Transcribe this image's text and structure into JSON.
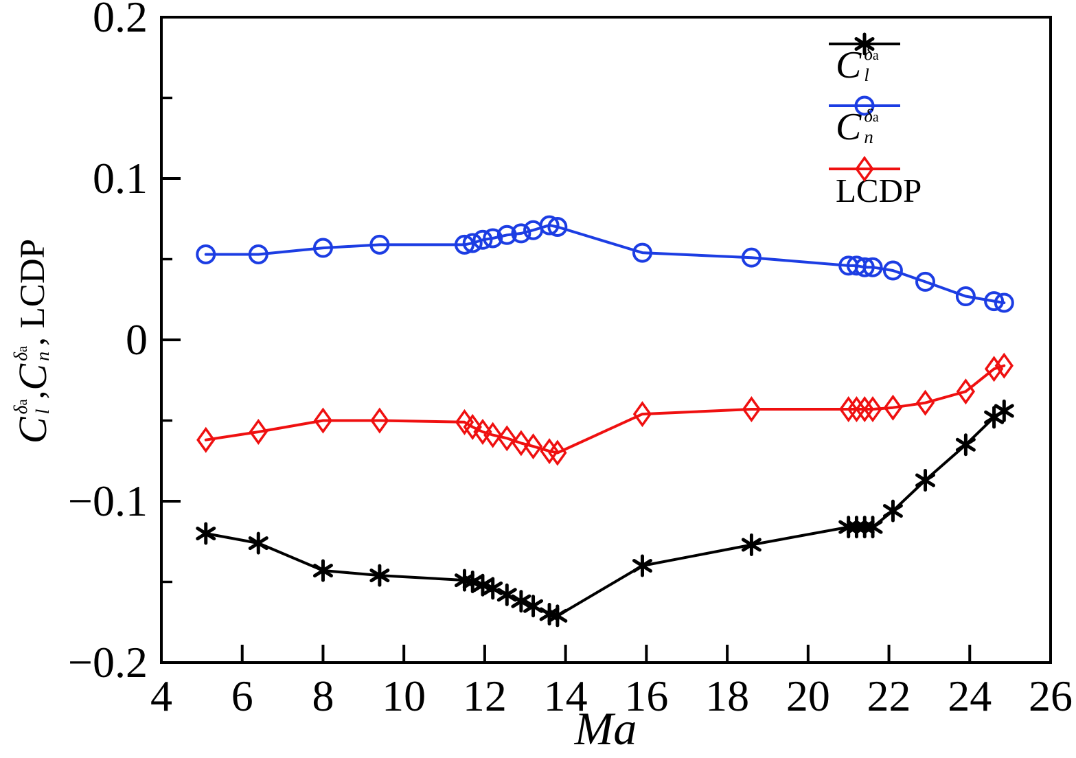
{
  "chart_data": {
    "type": "line",
    "title": "",
    "xlabel": "Ma",
    "ylabel_plain": "C_l^{δa}, C_n^{δa}, LCDP",
    "xlim": [
      4,
      26
    ],
    "ylim": [
      -0.2,
      0.2
    ],
    "grid": false,
    "legend_position": "top-right-inside",
    "x_ticks": [
      4,
      6,
      8,
      10,
      12,
      14,
      16,
      18,
      20,
      22,
      24,
      26
    ],
    "y_ticks_major": [
      {
        "v": 0.2,
        "label": "0.2"
      },
      {
        "v": 0.1,
        "label": "0.1"
      },
      {
        "v": 0,
        "label": "0"
      },
      {
        "v": -0.1,
        "label": "−0.1"
      },
      {
        "v": -0.2,
        "label": "−0.2"
      }
    ],
    "y_ticks_minor": [
      0.15,
      0.05,
      -0.05,
      -0.15
    ],
    "x": [
      5.1,
      6.4,
      8.0,
      9.4,
      11.5,
      11.7,
      11.95,
      12.2,
      12.55,
      12.9,
      13.2,
      13.6,
      13.8,
      15.9,
      18.6,
      21.0,
      21.2,
      21.4,
      21.6,
      22.1,
      22.9,
      23.9,
      24.6,
      24.85
    ],
    "series": [
      {
        "name": "C_l_delta_a",
        "marker": "asterisk",
        "color": "#000000",
        "label": {
          "kind": "math",
          "base": "C",
          "sup": "δ",
          "sup_sub": "a",
          "sub": "l"
        },
        "values": [
          -0.12,
          -0.126,
          -0.143,
          -0.146,
          -0.149,
          -0.15,
          -0.152,
          -0.154,
          -0.158,
          -0.162,
          -0.165,
          -0.17,
          -0.171,
          -0.14,
          -0.127,
          -0.116,
          -0.116,
          -0.116,
          -0.116,
          -0.106,
          -0.087,
          -0.065,
          -0.048,
          -0.044
        ]
      },
      {
        "name": "C_n_delta_a",
        "marker": "circle",
        "color": "#1c3de3",
        "label": {
          "kind": "math",
          "base": "C",
          "sup": "δ",
          "sup_sub": "a",
          "sub": "n"
        },
        "values": [
          0.053,
          0.053,
          0.057,
          0.059,
          0.059,
          0.06,
          0.062,
          0.063,
          0.065,
          0.066,
          0.068,
          0.071,
          0.07,
          0.054,
          0.051,
          0.046,
          0.046,
          0.045,
          0.045,
          0.043,
          0.036,
          0.027,
          0.024,
          0.023
        ]
      },
      {
        "name": "LCDP",
        "marker": "diamond",
        "color": "#ef1010",
        "label": {
          "kind": "text",
          "text": "LCDP"
        },
        "values": [
          -0.062,
          -0.057,
          -0.05,
          -0.05,
          -0.051,
          -0.054,
          -0.057,
          -0.059,
          -0.061,
          -0.064,
          -0.066,
          -0.069,
          -0.07,
          -0.046,
          -0.043,
          -0.043,
          -0.043,
          -0.043,
          -0.043,
          -0.042,
          -0.039,
          -0.032,
          -0.018,
          -0.016
        ]
      }
    ],
    "ylabel_rich": [
      {
        "kind": "math",
        "base": "C",
        "sup": "δ",
        "sup_sub": "a",
        "sub": "l"
      },
      {
        "kind": "text",
        "text": ", "
      },
      {
        "kind": "math",
        "base": "C",
        "sup": "δ",
        "sup_sub": "a",
        "sub": "n"
      },
      {
        "kind": "text",
        "text": ", LCDP"
      }
    ]
  }
}
